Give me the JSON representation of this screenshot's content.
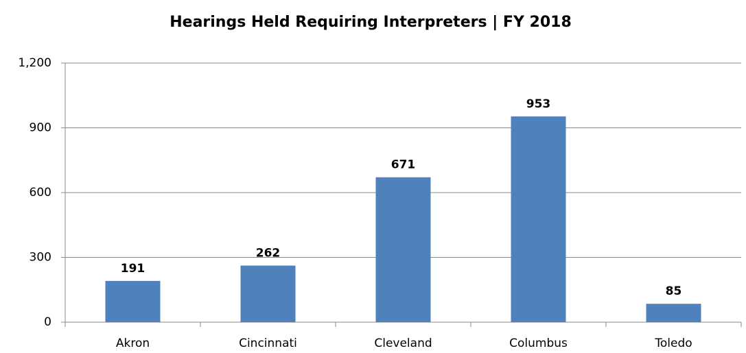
{
  "chart_data": {
    "type": "bar",
    "title": "Hearings Held Requiring Interpreters | FY 2018",
    "categories": [
      "Akron",
      "Cincinnati",
      "Cleveland",
      "Columbus",
      "Toledo"
    ],
    "values": [
      191,
      262,
      671,
      953,
      85
    ],
    "color": "#4f81bd",
    "ylim": [
      0,
      1200
    ],
    "yticks": [
      0,
      300,
      600,
      900,
      {
        "value": 1200,
        "label": "1,200"
      }
    ],
    "grid": true
  }
}
